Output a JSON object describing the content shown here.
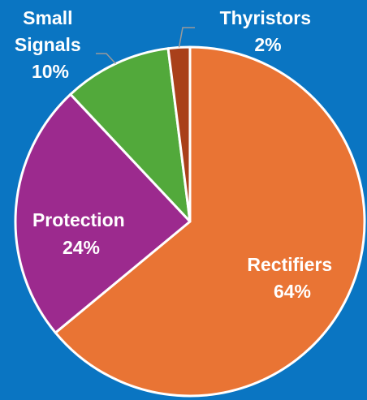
{
  "chart_data": {
    "type": "pie",
    "slices": [
      {
        "label": "Rectifiers",
        "value": 64,
        "value_label": "64%",
        "color": "#e97434"
      },
      {
        "label": "Protection",
        "value": 24,
        "value_label": "24%",
        "color": "#9c2a8e"
      },
      {
        "label": "Small Signals",
        "value": 10,
        "value_label": "10%",
        "color": "#52a93b"
      },
      {
        "label": "Thyristors",
        "value": 2,
        "value_label": "2%",
        "color": "#a9401a"
      }
    ],
    "start_angle_deg": 0,
    "direction": "clockwise"
  },
  "colors": {
    "background": "#0a75c2",
    "slice_border": "#ffffff",
    "label_text": "#ffffff"
  }
}
